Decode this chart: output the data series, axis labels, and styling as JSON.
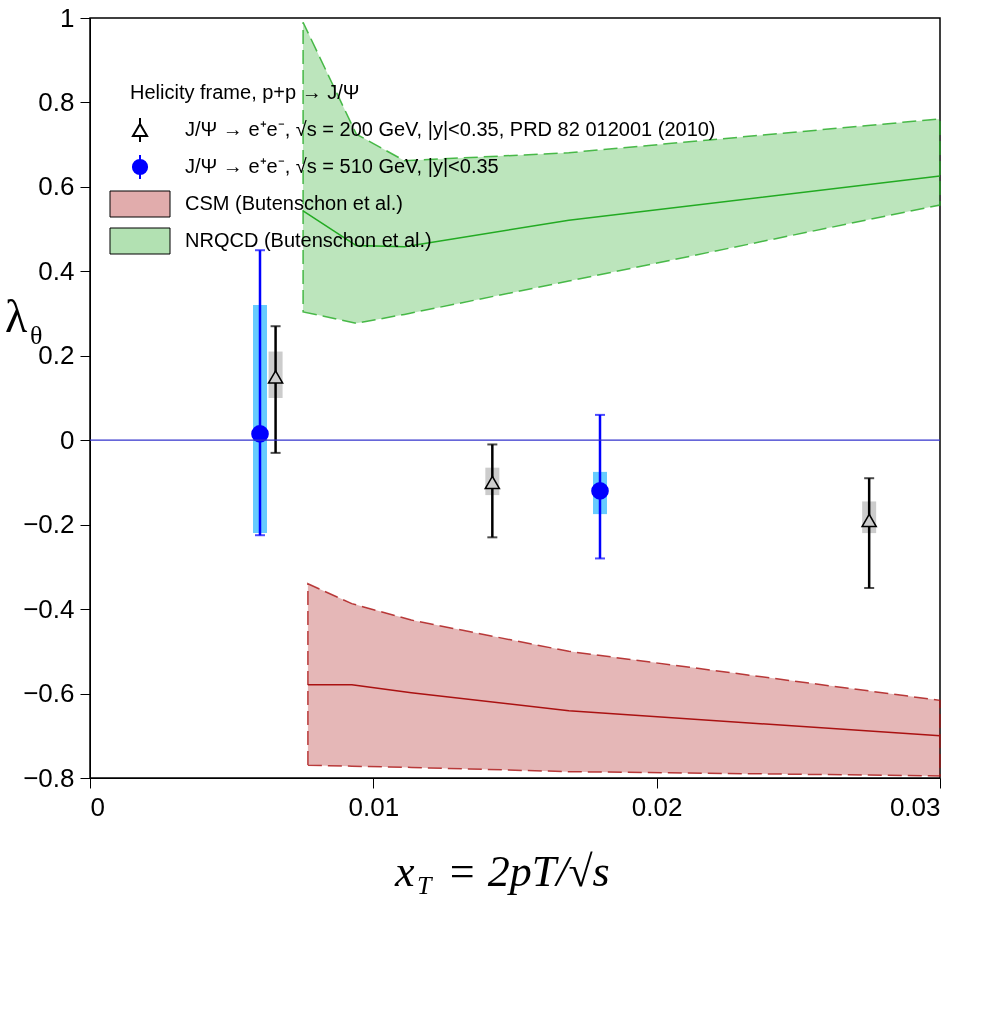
{
  "chart_data": {
    "type": "scatter",
    "legend_title": "Helicity frame, p+p → J/Ψ",
    "xlabel": "x$_{T}$ = 2pT/√s",
    "ylabel": "λ$_{θ}$",
    "xlim": [
      0,
      0.03
    ],
    "xticks": [
      0,
      0.01,
      0.02,
      0.03
    ],
    "ylim": [
      -0.8,
      1
    ],
    "yticks": [
      -0.8,
      -0.6,
      -0.4,
      -0.2,
      0,
      0.2,
      0.4,
      0.6,
      0.8,
      1
    ],
    "grid": false,
    "legend": "top left",
    "ref_lines": [
      {
        "axis": "y",
        "value": 0,
        "color": "#3333cc"
      }
    ],
    "series": [
      {
        "type": "bar",
        "color": "#cccccc",
        "x": [
          0.00655,
          0.0142,
          0.0275
        ],
        "base": [
          0.1,
          -0.13,
          -0.22
        ],
        "values": [
          0.11,
          0.065,
          0.075
        ]
      },
      {
        "name": "J/Ψ → e⁺e⁻, √s = 200 GeV, |y|<0.35, PRD 82 012001 (2010)",
        "marker": "triangle",
        "color": "#000000",
        "x": [
          0.00655,
          0.0142,
          0.0275
        ],
        "values": [
          0.15,
          -0.1,
          -0.19
        ],
        "errors": [
          [
            -0.03,
            0.27
          ],
          [
            -0.23,
            -0.01
          ],
          [
            -0.35,
            -0.09
          ]
        ]
      },
      {
        "type": "bar",
        "color": "#66ccff",
        "x": [
          0.006,
          0.018
        ],
        "base": [
          -0.22,
          -0.175
        ],
        "values": [
          0.54,
          0.1
        ]
      },
      {
        "name": "J/Ψ → e⁺e⁻, √s = 510 GeV, |y|<0.35",
        "marker": "circle",
        "color": "#0000ff",
        "x": [
          0.006,
          0.018
        ],
        "values": [
          0.015,
          -0.12
        ],
        "errors": [
          [
            -0.225,
            0.45
          ],
          [
            -0.28,
            0.06
          ]
        ]
      },
      {
        "name": "CSM (Butenschon et al.)",
        "type": "line",
        "line_style": "solid",
        "color": "#aa1111",
        "x": [
          0.00769,
          0.00924,
          0.01134,
          0.0169,
          0.03
        ],
        "values": [
          -0.579,
          -0.579,
          -0.598,
          -0.641,
          -0.7
        ],
        "lower": [
          -0.77,
          -0.772,
          -0.775,
          -0.785,
          -0.795
        ],
        "upper": [
          -0.34,
          -0.387,
          -0.426,
          -0.5,
          -0.616
        ]
      },
      {
        "name": "NRQCD (Butenschon et al.)",
        "type": "line",
        "line_style": "solid",
        "color": "#22aa22",
        "x": [
          0.00752,
          0.0094,
          0.0111,
          0.0169,
          0.03
        ],
        "values": [
          0.543,
          0.461,
          0.458,
          0.521,
          0.626
        ],
        "lower": [
          0.304,
          0.277,
          0.298,
          0.377,
          0.557
        ],
        "upper": [
          0.99,
          0.725,
          0.662,
          0.681,
          0.761
        ]
      }
    ]
  }
}
